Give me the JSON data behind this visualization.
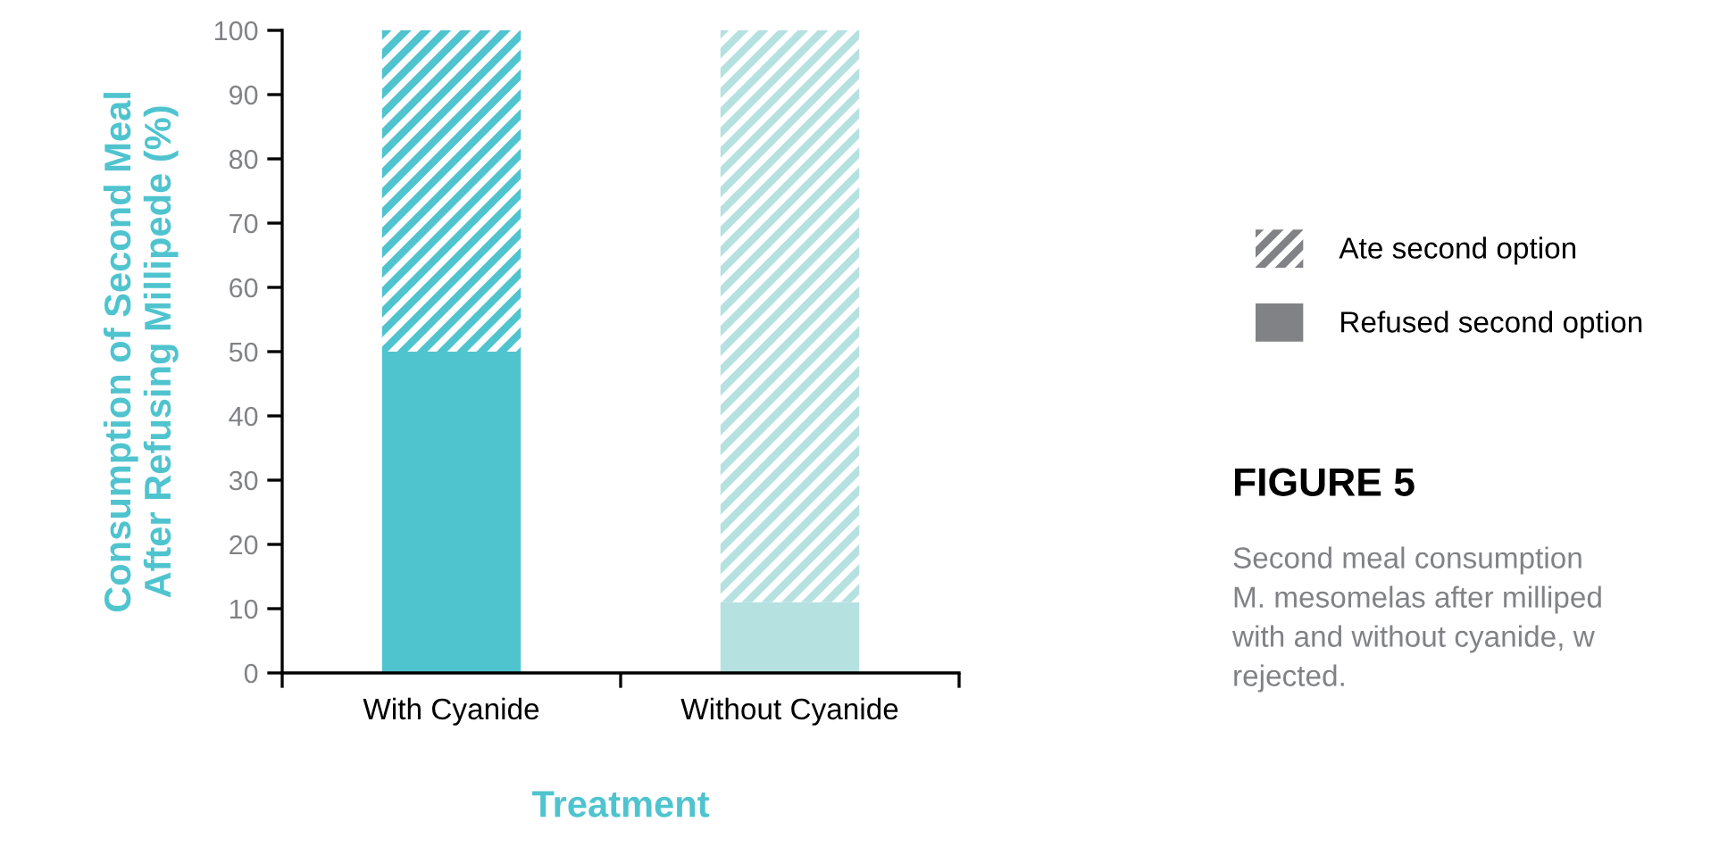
{
  "chart_data": {
    "type": "bar",
    "stacked": true,
    "categories": [
      "With Cyanide",
      "Without Cyanide"
    ],
    "series": [
      {
        "name": "Refused second option",
        "color": "#808285",
        "colors": [
          "#4fc4cf",
          "#b5e1e0"
        ],
        "values": [
          50,
          11
        ]
      },
      {
        "name": "Ate second option",
        "color": "#808285",
        "colors": [
          "#4fc4cf",
          "#b5e1e0"
        ],
        "values": [
          50,
          89
        ]
      }
    ],
    "xlabel": "Treatment",
    "ylabel": "Consumption of Second Meal\nAfter Refusing Millipede (%)",
    "ylim": [
      0,
      100
    ],
    "yticks": [
      0,
      10,
      20,
      30,
      40,
      50,
      60,
      70,
      80,
      90,
      100
    ],
    "grid": false,
    "legend": "right",
    "annotations": [
      "FIGURE 5",
      "Second meal consumption",
      "M. mesomelas after milliped",
      "with and without cyanide, w",
      "rejected."
    ]
  }
}
